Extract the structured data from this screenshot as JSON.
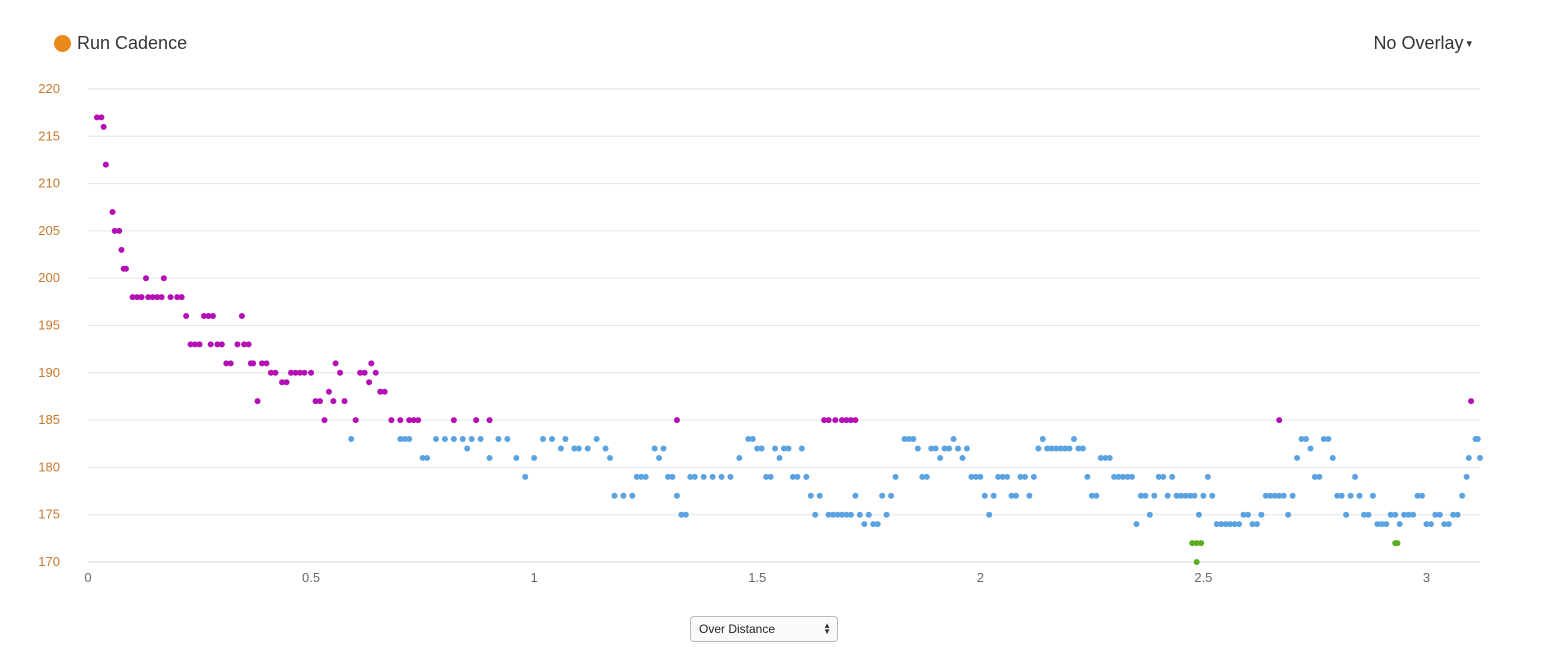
{
  "legend": {
    "label": "Run Cadence",
    "color": "#e8891c"
  },
  "overlay": {
    "label": "No Overlay",
    "caret": "▾"
  },
  "x_select": {
    "value": "Over Distance"
  },
  "chart_data": {
    "type": "scatter",
    "title": "",
    "xlabel": "",
    "ylabel": "",
    "xlim": [
      0,
      3.12
    ],
    "ylim": [
      170,
      220
    ],
    "x_ticks": [
      "0",
      "0.5",
      "1",
      "1.5",
      "2",
      "2.5",
      "3"
    ],
    "y_ticks": [
      "170",
      "175",
      "180",
      "185",
      "190",
      "195",
      "200",
      "205",
      "210",
      "215",
      "220"
    ],
    "grid": true,
    "colors": {
      "high": "#b40fb4",
      "mid": "#5ba3e0",
      "low": "#5bab1e"
    },
    "series": [
      {
        "color_key": "high",
        "points": [
          [
            0.02,
            217
          ],
          [
            0.03,
            217
          ],
          [
            0.035,
            216
          ],
          [
            0.04,
            212
          ],
          [
            0.055,
            207
          ],
          [
            0.06,
            205
          ],
          [
            0.07,
            205
          ],
          [
            0.075,
            203
          ],
          [
            0.08,
            201
          ],
          [
            0.085,
            201
          ],
          [
            0.1,
            198
          ],
          [
            0.11,
            198
          ],
          [
            0.12,
            198
          ],
          [
            0.13,
            200
          ],
          [
            0.135,
            198
          ],
          [
            0.145,
            198
          ],
          [
            0.155,
            198
          ],
          [
            0.165,
            198
          ],
          [
            0.17,
            200
          ],
          [
            0.185,
            198
          ],
          [
            0.2,
            198
          ],
          [
            0.21,
            198
          ],
          [
            0.22,
            196
          ],
          [
            0.23,
            193
          ],
          [
            0.24,
            193
          ],
          [
            0.25,
            193
          ],
          [
            0.26,
            196
          ],
          [
            0.27,
            196
          ],
          [
            0.275,
            193
          ],
          [
            0.28,
            196
          ],
          [
            0.29,
            193
          ],
          [
            0.3,
            193
          ],
          [
            0.31,
            191
          ],
          [
            0.32,
            191
          ],
          [
            0.335,
            193
          ],
          [
            0.345,
            196
          ],
          [
            0.35,
            193
          ],
          [
            0.36,
            193
          ],
          [
            0.365,
            191
          ],
          [
            0.37,
            191
          ],
          [
            0.38,
            187
          ],
          [
            0.39,
            191
          ],
          [
            0.4,
            191
          ],
          [
            0.41,
            190
          ],
          [
            0.42,
            190
          ],
          [
            0.435,
            189
          ],
          [
            0.445,
            189
          ],
          [
            0.455,
            190
          ],
          [
            0.465,
            190
          ],
          [
            0.475,
            190
          ],
          [
            0.485,
            190
          ],
          [
            0.5,
            190
          ],
          [
            0.51,
            187
          ],
          [
            0.52,
            187
          ],
          [
            0.53,
            185
          ],
          [
            0.54,
            188
          ],
          [
            0.55,
            187
          ],
          [
            0.555,
            191
          ],
          [
            0.565,
            190
          ],
          [
            0.575,
            187
          ],
          [
            0.6,
            185
          ],
          [
            0.61,
            190
          ],
          [
            0.62,
            190
          ],
          [
            0.63,
            189
          ],
          [
            0.635,
            191
          ],
          [
            0.645,
            190
          ],
          [
            0.655,
            188
          ],
          [
            0.665,
            188
          ],
          [
            0.68,
            185
          ],
          [
            0.7,
            185
          ],
          [
            0.72,
            185
          ],
          [
            0.73,
            185
          ],
          [
            0.74,
            185
          ],
          [
            0.82,
            185
          ],
          [
            0.87,
            185
          ],
          [
            0.9,
            185
          ],
          [
            1.32,
            185
          ],
          [
            1.65,
            185
          ],
          [
            1.66,
            185
          ],
          [
            1.675,
            185
          ],
          [
            1.69,
            185
          ],
          [
            1.7,
            185
          ],
          [
            1.71,
            185
          ],
          [
            1.72,
            185
          ],
          [
            2.67,
            185
          ],
          [
            3.1,
            187
          ]
        ]
      },
      {
        "color_key": "mid",
        "points": [
          [
            0.59,
            183
          ],
          [
            0.7,
            183
          ],
          [
            0.71,
            183
          ],
          [
            0.72,
            183
          ],
          [
            0.75,
            181
          ],
          [
            0.76,
            181
          ],
          [
            0.78,
            183
          ],
          [
            0.8,
            183
          ],
          [
            0.82,
            183
          ],
          [
            0.84,
            183
          ],
          [
            0.85,
            182
          ],
          [
            0.86,
            183
          ],
          [
            0.88,
            183
          ],
          [
            0.9,
            181
          ],
          [
            0.92,
            183
          ],
          [
            0.94,
            183
          ],
          [
            0.96,
            181
          ],
          [
            0.98,
            179
          ],
          [
            1.0,
            181
          ],
          [
            1.02,
            183
          ],
          [
            1.04,
            183
          ],
          [
            1.06,
            182
          ],
          [
            1.07,
            183
          ],
          [
            1.09,
            182
          ],
          [
            1.1,
            182
          ],
          [
            1.12,
            182
          ],
          [
            1.14,
            183
          ],
          [
            1.16,
            182
          ],
          [
            1.17,
            181
          ],
          [
            1.18,
            177
          ],
          [
            1.2,
            177
          ],
          [
            1.22,
            177
          ],
          [
            1.23,
            179
          ],
          [
            1.24,
            179
          ],
          [
            1.25,
            179
          ],
          [
            1.27,
            182
          ],
          [
            1.28,
            181
          ],
          [
            1.29,
            182
          ],
          [
            1.3,
            179
          ],
          [
            1.31,
            179
          ],
          [
            1.32,
            177
          ],
          [
            1.33,
            175
          ],
          [
            1.34,
            175
          ],
          [
            1.35,
            179
          ],
          [
            1.36,
            179
          ],
          [
            1.38,
            179
          ],
          [
            1.4,
            179
          ],
          [
            1.42,
            179
          ],
          [
            1.44,
            179
          ],
          [
            1.46,
            181
          ],
          [
            1.48,
            183
          ],
          [
            1.49,
            183
          ],
          [
            1.5,
            182
          ],
          [
            1.51,
            182
          ],
          [
            1.52,
            179
          ],
          [
            1.53,
            179
          ],
          [
            1.54,
            182
          ],
          [
            1.55,
            181
          ],
          [
            1.56,
            182
          ],
          [
            1.57,
            182
          ],
          [
            1.58,
            179
          ],
          [
            1.59,
            179
          ],
          [
            1.6,
            182
          ],
          [
            1.61,
            179
          ],
          [
            1.62,
            177
          ],
          [
            1.63,
            175
          ],
          [
            1.64,
            177
          ],
          [
            1.66,
            175
          ],
          [
            1.67,
            175
          ],
          [
            1.68,
            175
          ],
          [
            1.69,
            175
          ],
          [
            1.7,
            175
          ],
          [
            1.71,
            175
          ],
          [
            1.72,
            177
          ],
          [
            1.73,
            175
          ],
          [
            1.74,
            174
          ],
          [
            1.75,
            175
          ],
          [
            1.76,
            174
          ],
          [
            1.77,
            174
          ],
          [
            1.78,
            177
          ],
          [
            1.79,
            175
          ],
          [
            1.8,
            177
          ],
          [
            1.81,
            179
          ],
          [
            1.83,
            183
          ],
          [
            1.84,
            183
          ],
          [
            1.85,
            183
          ],
          [
            1.86,
            182
          ],
          [
            1.87,
            179
          ],
          [
            1.88,
            179
          ],
          [
            1.89,
            182
          ],
          [
            1.9,
            182
          ],
          [
            1.91,
            181
          ],
          [
            1.92,
            182
          ],
          [
            1.93,
            182
          ],
          [
            1.94,
            183
          ],
          [
            1.95,
            182
          ],
          [
            1.96,
            181
          ],
          [
            1.97,
            182
          ],
          [
            1.98,
            179
          ],
          [
            1.99,
            179
          ],
          [
            2.0,
            179
          ],
          [
            2.01,
            177
          ],
          [
            2.02,
            175
          ],
          [
            2.03,
            177
          ],
          [
            2.04,
            179
          ],
          [
            2.05,
            179
          ],
          [
            2.06,
            179
          ],
          [
            2.07,
            177
          ],
          [
            2.08,
            177
          ],
          [
            2.09,
            179
          ],
          [
            2.1,
            179
          ],
          [
            2.11,
            177
          ],
          [
            2.12,
            179
          ],
          [
            2.13,
            182
          ],
          [
            2.14,
            183
          ],
          [
            2.15,
            182
          ],
          [
            2.16,
            182
          ],
          [
            2.17,
            182
          ],
          [
            2.18,
            182
          ],
          [
            2.19,
            182
          ],
          [
            2.2,
            182
          ],
          [
            2.21,
            183
          ],
          [
            2.22,
            182
          ],
          [
            2.23,
            182
          ],
          [
            2.24,
            179
          ],
          [
            2.25,
            177
          ],
          [
            2.26,
            177
          ],
          [
            2.27,
            181
          ],
          [
            2.28,
            181
          ],
          [
            2.29,
            181
          ],
          [
            2.3,
            179
          ],
          [
            2.31,
            179
          ],
          [
            2.32,
            179
          ],
          [
            2.33,
            179
          ],
          [
            2.34,
            179
          ],
          [
            2.35,
            174
          ],
          [
            2.36,
            177
          ],
          [
            2.37,
            177
          ],
          [
            2.38,
            175
          ],
          [
            2.39,
            177
          ],
          [
            2.4,
            179
          ],
          [
            2.41,
            179
          ],
          [
            2.42,
            177
          ],
          [
            2.43,
            179
          ],
          [
            2.44,
            177
          ],
          [
            2.45,
            177
          ],
          [
            2.46,
            177
          ],
          [
            2.47,
            177
          ],
          [
            2.48,
            177
          ],
          [
            2.49,
            175
          ],
          [
            2.5,
            177
          ],
          [
            2.51,
            179
          ],
          [
            2.52,
            177
          ],
          [
            2.53,
            174
          ],
          [
            2.54,
            174
          ],
          [
            2.55,
            174
          ],
          [
            2.56,
            174
          ],
          [
            2.57,
            174
          ],
          [
            2.58,
            174
          ],
          [
            2.59,
            175
          ],
          [
            2.6,
            175
          ],
          [
            2.61,
            174
          ],
          [
            2.62,
            174
          ],
          [
            2.63,
            175
          ],
          [
            2.64,
            177
          ],
          [
            2.65,
            177
          ],
          [
            2.66,
            177
          ],
          [
            2.67,
            177
          ],
          [
            2.68,
            177
          ],
          [
            2.69,
            175
          ],
          [
            2.7,
            177
          ],
          [
            2.71,
            181
          ],
          [
            2.72,
            183
          ],
          [
            2.73,
            183
          ],
          [
            2.74,
            182
          ],
          [
            2.75,
            179
          ],
          [
            2.76,
            179
          ],
          [
            2.77,
            183
          ],
          [
            2.78,
            183
          ],
          [
            2.79,
            181
          ],
          [
            2.8,
            177
          ],
          [
            2.81,
            177
          ],
          [
            2.82,
            175
          ],
          [
            2.83,
            177
          ],
          [
            2.84,
            179
          ],
          [
            2.85,
            177
          ],
          [
            2.86,
            175
          ],
          [
            2.87,
            175
          ],
          [
            2.88,
            177
          ],
          [
            2.89,
            174
          ],
          [
            2.9,
            174
          ],
          [
            2.91,
            174
          ],
          [
            2.92,
            175
          ],
          [
            2.93,
            175
          ],
          [
            2.94,
            174
          ],
          [
            2.95,
            175
          ],
          [
            2.96,
            175
          ],
          [
            2.97,
            175
          ],
          [
            2.98,
            177
          ],
          [
            2.99,
            177
          ],
          [
            3.0,
            174
          ],
          [
            3.01,
            174
          ],
          [
            3.02,
            175
          ],
          [
            3.03,
            175
          ],
          [
            3.04,
            174
          ],
          [
            3.05,
            174
          ],
          [
            3.06,
            175
          ],
          [
            3.07,
            175
          ],
          [
            3.08,
            177
          ],
          [
            3.09,
            179
          ],
          [
            3.095,
            181
          ],
          [
            3.11,
            183
          ],
          [
            3.115,
            183
          ],
          [
            3.12,
            181
          ]
        ]
      },
      {
        "color_key": "low",
        "points": [
          [
            2.475,
            172
          ],
          [
            2.485,
            172
          ],
          [
            2.495,
            172
          ],
          [
            2.485,
            170
          ],
          [
            2.93,
            172
          ],
          [
            2.935,
            172
          ]
        ]
      }
    ]
  }
}
